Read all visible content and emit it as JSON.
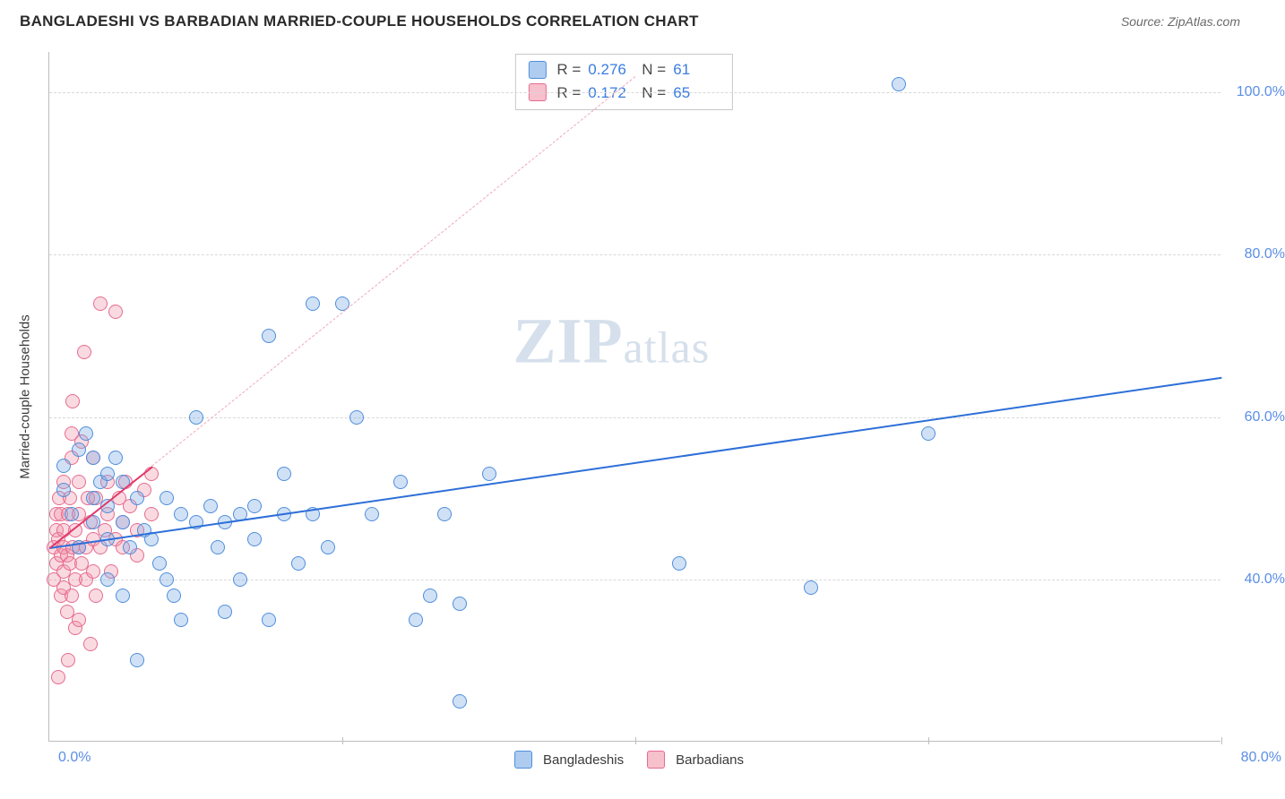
{
  "title": "BANGLADESHI VS BARBADIAN MARRIED-COUPLE HOUSEHOLDS CORRELATION CHART",
  "source_label": "Source: ZipAtlas.com",
  "y_axis_title": "Married-couple Households",
  "watermark_main": "ZIP",
  "watermark_sub": "atlas",
  "chart": {
    "type": "scatter",
    "xlim": [
      0,
      80
    ],
    "ylim": [
      20,
      105
    ],
    "x_origin_label": "0.0%",
    "x_max_label": "80.0%",
    "y_ticks": [
      40,
      60,
      80,
      100
    ],
    "y_tick_labels": [
      "40.0%",
      "60.0%",
      "80.0%",
      "100.0%"
    ],
    "x_ticks": [
      20,
      40,
      60,
      80
    ],
    "grid_color": "#d8d8d8",
    "axis_color": "#bdbdbd",
    "background_color": "#ffffff",
    "series": [
      {
        "name": "Bangladeshis",
        "color_fill": "rgba(120,170,230,0.35)",
        "color_stroke": "#4f8edc",
        "r_value": "0.276",
        "n_value": "61",
        "trend": {
          "x1": 0,
          "y1": 44,
          "x2": 80,
          "y2": 65,
          "style": "solid",
          "color": "#2d6fd8"
        },
        "points": [
          [
            1,
            51
          ],
          [
            1,
            54
          ],
          [
            1.5,
            48
          ],
          [
            2,
            44
          ],
          [
            2,
            56
          ],
          [
            2.5,
            58
          ],
          [
            3,
            50
          ],
          [
            3,
            47
          ],
          [
            3,
            55
          ],
          [
            3.5,
            52
          ],
          [
            4,
            49
          ],
          [
            4,
            53
          ],
          [
            4,
            45
          ],
          [
            4,
            40
          ],
          [
            4.5,
            55
          ],
          [
            5,
            38
          ],
          [
            5,
            47
          ],
          [
            5,
            52
          ],
          [
            5.5,
            44
          ],
          [
            6,
            50
          ],
          [
            6,
            30
          ],
          [
            6.5,
            46
          ],
          [
            7,
            45
          ],
          [
            7.5,
            42
          ],
          [
            8,
            40
          ],
          [
            8,
            50
          ],
          [
            8.5,
            38
          ],
          [
            9,
            48
          ],
          [
            9,
            35
          ],
          [
            10,
            47
          ],
          [
            10,
            60
          ],
          [
            11,
            49
          ],
          [
            11.5,
            44
          ],
          [
            12,
            47
          ],
          [
            12,
            36
          ],
          [
            13,
            40
          ],
          [
            13,
            48
          ],
          [
            14,
            45
          ],
          [
            14,
            49
          ],
          [
            15,
            70
          ],
          [
            15,
            35
          ],
          [
            16,
            48
          ],
          [
            16,
            53
          ],
          [
            17,
            42
          ],
          [
            18,
            74
          ],
          [
            18,
            48
          ],
          [
            19,
            44
          ],
          [
            20,
            74
          ],
          [
            21,
            60
          ],
          [
            22,
            48
          ],
          [
            24,
            52
          ],
          [
            25,
            35
          ],
          [
            26,
            38
          ],
          [
            27,
            48
          ],
          [
            28,
            25
          ],
          [
            28,
            37
          ],
          [
            30,
            53
          ],
          [
            43,
            42
          ],
          [
            52,
            39
          ],
          [
            58,
            101
          ],
          [
            60,
            58
          ]
        ]
      },
      {
        "name": "Barbadians",
        "color_fill": "rgba(240,150,170,0.35)",
        "color_stroke": "#e66b8f",
        "r_value": "0.172",
        "n_value": "65",
        "trend_solid": {
          "x1": 0,
          "y1": 44,
          "x2": 7,
          "y2": 54,
          "color": "#e03a6a"
        },
        "trend_dash": {
          "x1": 7,
          "y1": 54,
          "x2": 40,
          "y2": 102,
          "color": "#f0a8bb"
        },
        "points": [
          [
            0.3,
            40
          ],
          [
            0.3,
            44
          ],
          [
            0.5,
            42
          ],
          [
            0.5,
            46
          ],
          [
            0.5,
            48
          ],
          [
            0.6,
            28
          ],
          [
            0.6,
            45
          ],
          [
            0.7,
            50
          ],
          [
            0.8,
            43
          ],
          [
            0.8,
            38
          ],
          [
            0.8,
            48
          ],
          [
            1,
            44
          ],
          [
            1,
            41
          ],
          [
            1,
            39
          ],
          [
            1,
            46
          ],
          [
            1,
            52
          ],
          [
            1.2,
            43
          ],
          [
            1.2,
            36
          ],
          [
            1.3,
            48
          ],
          [
            1.3,
            30
          ],
          [
            1.4,
            42
          ],
          [
            1.4,
            50
          ],
          [
            1.5,
            55
          ],
          [
            1.5,
            58
          ],
          [
            1.5,
            38
          ],
          [
            1.6,
            44
          ],
          [
            1.6,
            62
          ],
          [
            1.8,
            46
          ],
          [
            1.8,
            34
          ],
          [
            1.8,
            40
          ],
          [
            2,
            44
          ],
          [
            2,
            52
          ],
          [
            2,
            48
          ],
          [
            2,
            35
          ],
          [
            2.2,
            42
          ],
          [
            2.2,
            57
          ],
          [
            2.4,
            68
          ],
          [
            2.5,
            44
          ],
          [
            2.5,
            40
          ],
          [
            2.6,
            50
          ],
          [
            2.8,
            47
          ],
          [
            2.8,
            32
          ],
          [
            3,
            45
          ],
          [
            3,
            55
          ],
          [
            3,
            41
          ],
          [
            3.2,
            50
          ],
          [
            3.2,
            38
          ],
          [
            3.5,
            74
          ],
          [
            3.5,
            44
          ],
          [
            3.8,
            46
          ],
          [
            4,
            48
          ],
          [
            4,
            52
          ],
          [
            4.2,
            41
          ],
          [
            4.5,
            73
          ],
          [
            4.5,
            45
          ],
          [
            4.8,
            50
          ],
          [
            5,
            44
          ],
          [
            5,
            47
          ],
          [
            5.2,
            52
          ],
          [
            5.5,
            49
          ],
          [
            6,
            46
          ],
          [
            6,
            43
          ],
          [
            6.5,
            51
          ],
          [
            7,
            48
          ],
          [
            7,
            53
          ]
        ]
      }
    ]
  },
  "legend": {
    "series1_label": "Bangladeshis",
    "series2_label": "Barbadians"
  },
  "stats_box": {
    "r_label": "R =",
    "n_label": "N ="
  }
}
